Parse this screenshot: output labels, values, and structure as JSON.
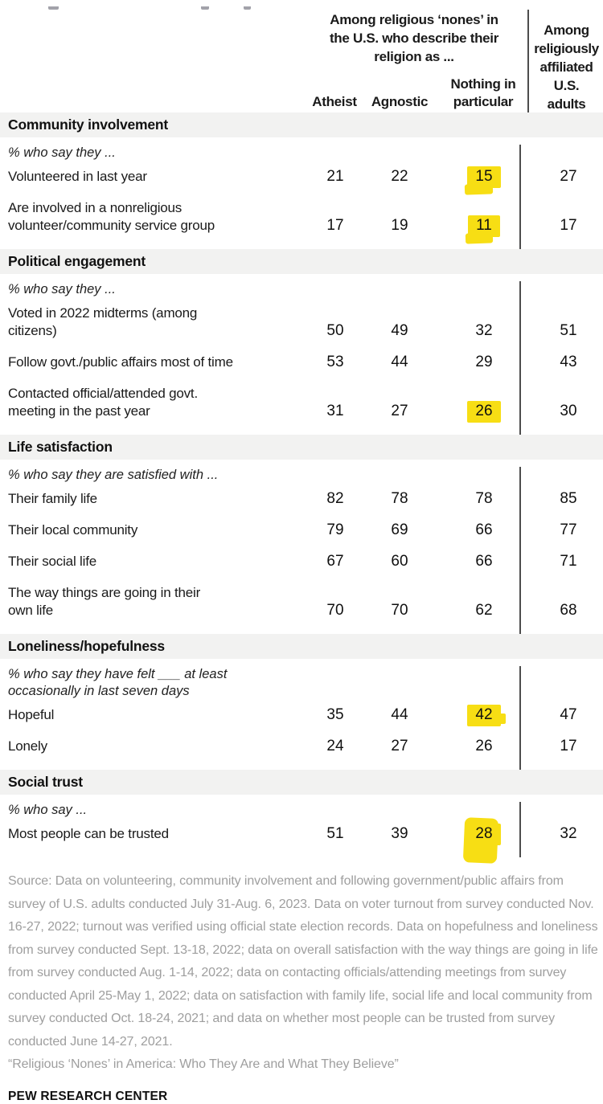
{
  "colors": {
    "highlight": "#F7DE14",
    "band": "#F2F2F1",
    "divider": "#4D4D4D",
    "text": "#1A1A1A",
    "muted": "#9E9E9E"
  },
  "header": {
    "group_title": "Among religious ‘nones’ in\nthe U.S. who describe their\nreligion as ...",
    "affiliated_title": "Among\nreligiously\naffiliated\nU.S.\nadults",
    "col1": "Atheist",
    "col2": "Agnostic",
    "col3": "Nothing in\nparticular"
  },
  "chart_data": {
    "type": "table",
    "column_group_label": "Among religious ‘nones’ in the U.S. who describe their religion as ...",
    "columns": [
      "Atheist",
      "Agnostic",
      "Nothing in particular",
      "Among religiously affiliated U.S. adults"
    ],
    "unit": "percent",
    "highlight_note": "Yellow marker highlights on the 'Nothing in particular' column values 15, 11, 26, 42, 28",
    "sections": [
      {
        "title": "Community involvement",
        "subtitle": "% who say they ...",
        "rows": [
          {
            "label": "Volunteered in last year",
            "values": [
              21,
              22,
              15,
              27
            ],
            "highlighted_column": "Nothing in particular"
          },
          {
            "label": "Are involved in a nonreligious\nvolunteer/community service group",
            "values": [
              17,
              19,
              11,
              17
            ],
            "highlighted_column": "Nothing in particular"
          }
        ]
      },
      {
        "title": "Political engagement",
        "subtitle": "% who say they ...",
        "rows": [
          {
            "label": "Voted in 2022 midterms (among\ncitizens)",
            "values": [
              50,
              49,
              32,
              51
            ]
          },
          {
            "label": "Follow govt./public affairs most of time",
            "values": [
              53,
              44,
              29,
              43
            ]
          },
          {
            "label": "Contacted official/attended govt.\nmeeting in the past year",
            "values": [
              31,
              27,
              26,
              30
            ],
            "highlighted_column": "Nothing in particular"
          }
        ]
      },
      {
        "title": "Life satisfaction",
        "subtitle": "% who say they are satisfied with ...",
        "rows": [
          {
            "label": "Their family life",
            "values": [
              82,
              78,
              78,
              85
            ]
          },
          {
            "label": "Their local community",
            "values": [
              79,
              69,
              66,
              77
            ]
          },
          {
            "label": "Their social life",
            "values": [
              67,
              60,
              66,
              71
            ]
          },
          {
            "label": "The way things are going in their\nown life",
            "values": [
              70,
              70,
              62,
              68
            ]
          }
        ]
      },
      {
        "title": "Loneliness/hopefulness",
        "subtitle": "% who say they have felt ___ at least\noccasionally in last seven days",
        "rows": [
          {
            "label": "Hopeful",
            "values": [
              35,
              44,
              42,
              47
            ],
            "highlighted_column": "Nothing in particular"
          },
          {
            "label": "Lonely",
            "values": [
              24,
              27,
              26,
              17
            ]
          }
        ]
      },
      {
        "title": "Social trust",
        "subtitle": "% who say ...",
        "rows": [
          {
            "label": "Most people can be trusted",
            "values": [
              51,
              39,
              28,
              32
            ],
            "highlighted_column": "Nothing in particular"
          }
        ]
      }
    ]
  },
  "footer": {
    "source": "Source: Data on volunteering, community involvement and following government/public affairs from survey of U.S. adults conducted July 31-Aug. 6, 2023. Data on voter turnout from survey conducted Nov. 16-27, 2022; turnout was verified using official state election records. Data on hopefulness and loneliness from survey conducted Sept. 13-18, 2022; data on overall satisfaction with the way things are going in life from survey conducted Aug. 1-14, 2022; data on contacting officials/attending meetings from survey conducted April 25-May 1, 2022; data on satisfaction with family life, social life and local community from survey conducted Oct. 18-24, 2021; and data on whether most people can be trusted from survey conducted June 14-27, 2021.",
    "report_title": "“Religious ‘Nones’ in America: Who They Are and What They Believe”",
    "brand": "PEW RESEARCH CENTER"
  }
}
